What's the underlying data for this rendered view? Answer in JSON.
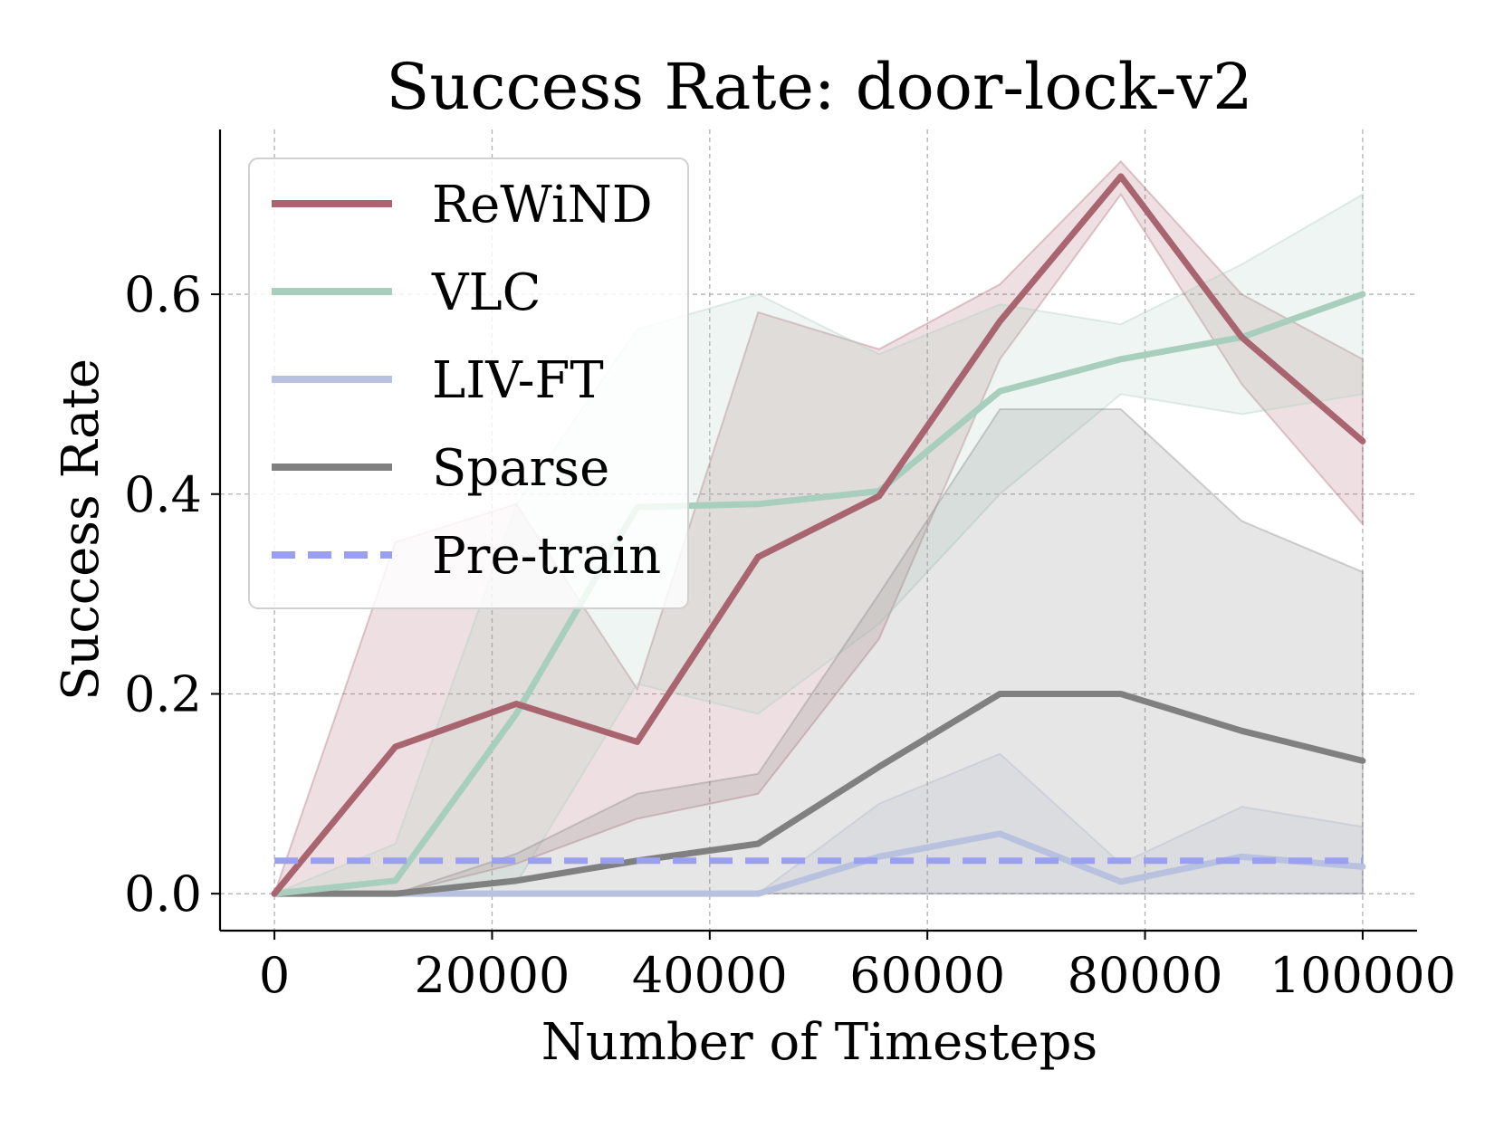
{
  "chart_data": {
    "type": "line",
    "title": "Success Rate: door-lock-v2",
    "xlabel": "Number of Timesteps",
    "ylabel": "Success Rate",
    "xlim": [
      -5000,
      105000
    ],
    "ylim": [
      -0.037,
      0.765
    ],
    "xticks": [
      0,
      20000,
      40000,
      60000,
      80000,
      100000
    ],
    "xtick_labels": [
      "0",
      "20000",
      "40000",
      "60000",
      "80000",
      "100000"
    ],
    "yticks": [
      0.0,
      0.2,
      0.4,
      0.6
    ],
    "ytick_labels": [
      "0.0",
      "0.2",
      "0.4",
      "0.6"
    ],
    "grid": true,
    "legend_position": "upper-left",
    "x": [
      0,
      11111,
      22222,
      33333,
      44444,
      55556,
      66667,
      77778,
      88889,
      100000
    ],
    "series": [
      {
        "name": "ReWiND",
        "color": "#a8646f",
        "values": [
          0.0,
          0.147,
          0.19,
          0.152,
          0.337,
          0.398,
          0.573,
          0.718,
          0.557,
          0.453
        ],
        "lower": [
          0.0,
          0.0,
          0.03,
          0.075,
          0.1,
          0.255,
          0.535,
          0.7,
          0.51,
          0.37
        ],
        "upper": [
          0.0,
          0.352,
          0.39,
          0.205,
          0.582,
          0.545,
          0.61,
          0.733,
          0.6,
          0.535
        ]
      },
      {
        "name": "VLC",
        "color": "#a8cfbe",
        "values": [
          0.0,
          0.013,
          0.18,
          0.387,
          0.39,
          0.403,
          0.503,
          0.535,
          0.557,
          0.6
        ],
        "lower": [
          0.0,
          0.0,
          0.01,
          0.21,
          0.18,
          0.27,
          0.4,
          0.5,
          0.48,
          0.5
        ],
        "upper": [
          0.0,
          0.05,
          0.39,
          0.565,
          0.6,
          0.54,
          0.59,
          0.57,
          0.63,
          0.7
        ]
      },
      {
        "name": "LIV-FT",
        "color": "#b8c1de",
        "values": [
          0.0,
          0.0,
          0.0,
          0.0,
          0.0,
          0.037,
          0.06,
          0.012,
          0.037,
          0.027
        ],
        "lower": [
          0.0,
          0.0,
          0.0,
          0.0,
          0.0,
          0.0,
          0.0,
          0.0,
          0.0,
          0.0
        ],
        "upper": [
          0.0,
          0.0,
          0.0,
          0.0,
          0.0,
          0.09,
          0.14,
          0.03,
          0.087,
          0.067
        ]
      },
      {
        "name": "Sparse",
        "color": "#808080",
        "values": [
          0.0,
          0.0,
          0.013,
          0.033,
          0.05,
          0.127,
          0.2,
          0.2,
          0.163,
          0.133
        ],
        "lower": [
          0.0,
          0.0,
          0.0,
          0.0,
          0.0,
          0.0,
          0.0,
          0.0,
          0.0,
          0.0
        ],
        "upper": [
          0.0,
          0.0,
          0.04,
          0.1,
          0.12,
          0.3,
          0.485,
          0.485,
          0.373,
          0.322
        ]
      }
    ],
    "reference_line": {
      "name": "Pre-train",
      "color": "#9b9ff0",
      "value": 0.033,
      "style": "dashed"
    }
  }
}
